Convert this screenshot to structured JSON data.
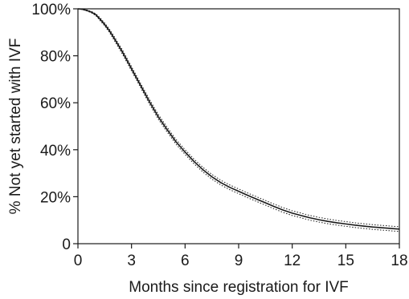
{
  "chart_data": {
    "type": "line",
    "title": "",
    "xlabel": "Months since registration for IVF",
    "ylabel": "% Not yet started with IVF",
    "xlim": [
      0,
      18
    ],
    "ylim": [
      0,
      100
    ],
    "x_ticks": [
      0,
      3,
      6,
      9,
      12,
      15,
      18
    ],
    "x_tick_labels": [
      "0",
      "3",
      "6",
      "9",
      "12",
      "15",
      "18"
    ],
    "y_ticks": [
      0,
      20,
      40,
      60,
      80,
      100
    ],
    "y_tick_labels": [
      "0",
      "20%",
      "40%",
      "60%",
      "80%",
      "100%"
    ],
    "grid": false,
    "legend": "none",
    "series": [
      {
        "role": "estimate",
        "style": "solid",
        "color": "#1a1a1a",
        "x": [
          0,
          0.25,
          0.5,
          0.75,
          1,
          1.25,
          1.5,
          1.75,
          2,
          2.5,
          3,
          3.5,
          4,
          4.5,
          5,
          5.5,
          6,
          6.5,
          7,
          7.5,
          8,
          8.5,
          9,
          9.5,
          10,
          10.5,
          11,
          11.5,
          12,
          12.5,
          13,
          13.5,
          14,
          14.5,
          15,
          15.5,
          16,
          16.5,
          17,
          17.5,
          18
        ],
        "values": [
          100,
          99.8,
          99.3,
          98.6,
          97.5,
          95.5,
          93.3,
          90.8,
          87.8,
          81.5,
          74.5,
          67.5,
          60.5,
          54,
          48.5,
          43.3,
          39,
          35,
          31.5,
          28.5,
          26,
          24,
          22.3,
          20.6,
          19,
          17.4,
          15.8,
          14.3,
          13,
          12,
          11,
          10.2,
          9.5,
          8.9,
          8.4,
          7.9,
          7.5,
          7.1,
          6.8,
          6.5,
          6.2
        ]
      },
      {
        "role": "upper-confidence-bound",
        "style": "dotted",
        "color": "#1a1a1a",
        "x": [
          0,
          0.25,
          0.5,
          0.75,
          1,
          1.25,
          1.5,
          1.75,
          2,
          2.5,
          3,
          3.5,
          4,
          4.5,
          5,
          5.5,
          6,
          6.5,
          7,
          7.5,
          8,
          8.5,
          9,
          9.5,
          10,
          10.5,
          11,
          11.5,
          12,
          12.5,
          13,
          13.5,
          14,
          14.5,
          15,
          15.5,
          16,
          16.5,
          17,
          17.5,
          18
        ],
        "values": [
          100,
          99.9,
          99.5,
          98.9,
          97.9,
          96.1,
          93.9,
          91.5,
          88.6,
          82.4,
          75.4,
          68.4,
          61.5,
          55,
          49.5,
          44.3,
          40,
          36,
          32.5,
          29.5,
          27,
          25,
          23.3,
          21.6,
          20,
          18.4,
          16.8,
          15.3,
          14,
          13,
          12,
          11.2,
          10.5,
          9.9,
          9.4,
          8.9,
          8.5,
          8.1,
          7.8,
          7.5,
          7.2
        ]
      },
      {
        "role": "lower-confidence-bound",
        "style": "dotted",
        "color": "#1a1a1a",
        "x": [
          0,
          0.25,
          0.5,
          0.75,
          1,
          1.25,
          1.5,
          1.75,
          2,
          2.5,
          3,
          3.5,
          4,
          4.5,
          5,
          5.5,
          6,
          6.5,
          7,
          7.5,
          8,
          8.5,
          9,
          9.5,
          10,
          10.5,
          11,
          11.5,
          12,
          12.5,
          13,
          13.5,
          14,
          14.5,
          15,
          15.5,
          16,
          16.5,
          17,
          17.5,
          18
        ],
        "values": [
          100,
          99.7,
          99.1,
          98.3,
          97.1,
          94.9,
          92.7,
          90.1,
          87.0,
          80.6,
          73.6,
          66.6,
          59.5,
          53,
          47.5,
          42.3,
          38,
          34,
          30.5,
          27.5,
          25,
          23,
          21.3,
          19.6,
          18,
          16.4,
          14.8,
          13.3,
          12,
          11,
          10,
          9.2,
          8.5,
          7.9,
          7.4,
          6.9,
          6.5,
          6.1,
          5.8,
          5.5,
          5.2
        ]
      }
    ]
  }
}
